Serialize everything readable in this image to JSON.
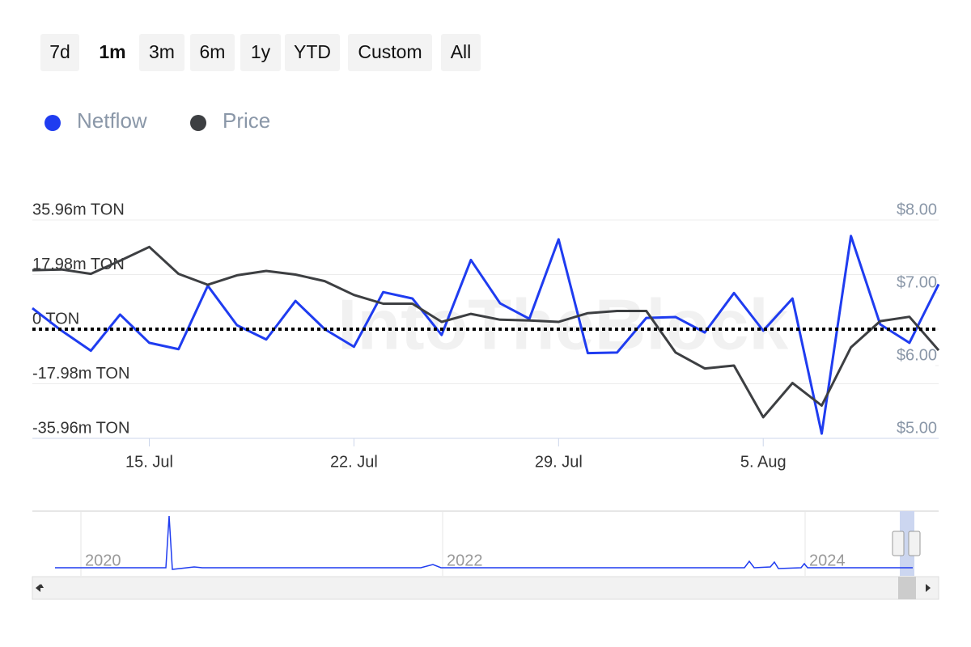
{
  "range_buttons": [
    "7d",
    "1m",
    "3m",
    "6m",
    "1y",
    "YTD",
    "Custom",
    "All"
  ],
  "selected_range": "1m",
  "chart_data": {
    "type": "line",
    "watermark": "IntoTheBlock",
    "categories": [
      null,
      null,
      null,
      null,
      "15. Jul",
      null,
      null,
      null,
      null,
      null,
      null,
      "22. Jul",
      null,
      null,
      null,
      null,
      null,
      null,
      "29. Jul",
      null,
      null,
      null,
      null,
      null,
      null,
      "5. Aug",
      null,
      null,
      null,
      null,
      null,
      null
    ],
    "series": [
      {
        "name": "Netflow",
        "color": "#1f3cf0",
        "values": [
          6.9,
          -0.5,
          -7.1,
          4.8,
          -4.5,
          -6.6,
          14.3,
          1.3,
          -3.4,
          9.3,
          0,
          -5.8,
          12.2,
          10.1,
          -1.9,
          22.8,
          8.5,
          3.4,
          29.6,
          -7.9,
          -7.7,
          3.7,
          4.0,
          -1.1,
          11.9,
          -0.5,
          10.1,
          -34.4,
          30.7,
          1.6,
          -4.5,
          14.8
        ]
      },
      {
        "name": "Price",
        "color": "#3d3f42",
        "axis": "y2",
        "values": [
          7.31,
          7.32,
          7.26,
          7.44,
          7.63,
          7.26,
          7.11,
          7.24,
          7.3,
          7.25,
          7.16,
          6.97,
          6.85,
          6.85,
          6.6,
          6.71,
          6.63,
          6.62,
          6.6,
          6.72,
          6.75,
          6.75,
          6.18,
          5.96,
          6.0,
          5.29,
          5.76,
          5.45,
          6.25,
          6.61,
          6.67,
          6.21
        ]
      }
    ],
    "ylim": [
      -35.96,
      35.96
    ],
    "yticks": [
      {
        "value": 35.96,
        "label": "35.96m TON"
      },
      {
        "value": 17.98,
        "label": "17.98m TON"
      },
      {
        "value": 0,
        "label": "0 TON"
      },
      {
        "value": -17.98,
        "label": "-17.98m TON"
      },
      {
        "value": -35.96,
        "label": "-35.96m TON"
      }
    ],
    "y2lim": [
      5,
      8
    ],
    "y2ticks": [
      {
        "value": 8,
        "label": "$8.00"
      },
      {
        "value": 7,
        "label": "$7.00"
      },
      {
        "value": 6,
        "label": "$6.00"
      },
      {
        "value": 5,
        "label": "$5.00"
      }
    ],
    "plot_line": 0,
    "grid": true,
    "legend": "top-left",
    "navigator": {
      "labels": [
        "2020",
        "2022",
        "2024"
      ]
    }
  }
}
